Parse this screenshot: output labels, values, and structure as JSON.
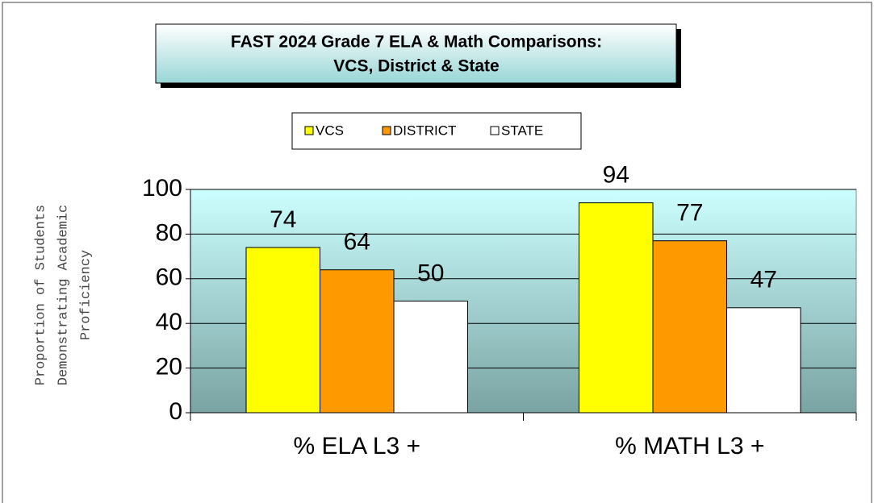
{
  "chart_data": {
    "type": "bar",
    "title": [
      "FAST 2024 Grade 7 ELA & Math Comparisons:",
      "VCS, District  & State"
    ],
    "y_label": [
      "Proportion of Students",
      "Demonstrating Academic",
      "Proficiency"
    ],
    "categories": [
      "% ELA L3 +",
      "% MATH L3 +"
    ],
    "series": [
      {
        "name": "VCS",
        "color": "#ffff00",
        "values": [
          74,
          94
        ]
      },
      {
        "name": "DISTRICT",
        "color": "#ff9900",
        "values": [
          64,
          77
        ]
      },
      {
        "name": "STATE",
        "color": "#ffffff",
        "values": [
          50,
          47
        ]
      }
    ],
    "ylim": [
      0,
      100
    ],
    "yticks": [
      0,
      20,
      40,
      60,
      80,
      100
    ],
    "grid": true,
    "legend": "top"
  }
}
